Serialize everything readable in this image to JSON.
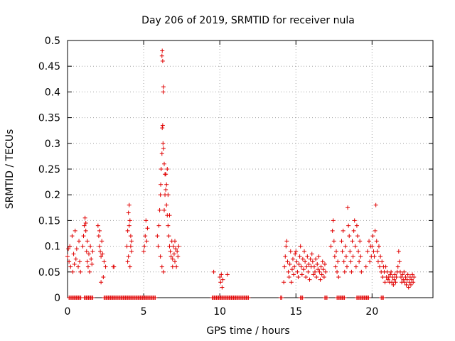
{
  "chart_data": {
    "type": "scatter",
    "title": "Day 206 of 2019, SRMTID for receiver nula",
    "xlabel": "GPS time / hours",
    "ylabel": "SRMTID / TECUs",
    "xlim": [
      0,
      24
    ],
    "ylim": [
      0,
      0.5
    ],
    "xticks": [
      0,
      5,
      10,
      15,
      20
    ],
    "yticks": [
      0,
      0.05,
      0.1,
      0.15,
      0.2,
      0.25,
      0.3,
      0.35,
      0.4,
      0.45,
      0.5
    ],
    "grid": true,
    "marker": "+",
    "color": "#e00000",
    "series": [
      {
        "name": "SRMTID",
        "points": [
          [
            0.0,
            0.08
          ],
          [
            0.05,
            0.095
          ],
          [
            0.1,
            0.07
          ],
          [
            0.15,
            0.1
          ],
          [
            0.2,
            0.06
          ],
          [
            0.3,
            0.12
          ],
          [
            0.35,
            0.05
          ],
          [
            0.4,
            0.085
          ],
          [
            0.45,
            0.065
          ],
          [
            0.5,
            0.13
          ],
          [
            0.55,
            0.075
          ],
          [
            0.6,
            0.095
          ],
          [
            0.7,
            0.06
          ],
          [
            0.75,
            0.11
          ],
          [
            0.8,
            0.07
          ],
          [
            0.85,
            0.05
          ],
          [
            1.0,
            0.1
          ],
          [
            1.05,
            0.12
          ],
          [
            1.1,
            0.14
          ],
          [
            1.15,
            0.155
          ],
          [
            1.2,
            0.13
          ],
          [
            1.25,
            0.09
          ],
          [
            1.3,
            0.07
          ],
          [
            1.35,
            0.06
          ],
          [
            1.4,
            0.085
          ],
          [
            1.45,
            0.05
          ],
          [
            1.5,
            0.1
          ],
          [
            1.55,
            0.075
          ],
          [
            1.6,
            0.065
          ],
          [
            1.65,
            0.09
          ],
          [
            1.3,
            0.11
          ],
          [
            1.2,
            0.145
          ],
          [
            2.0,
            0.14
          ],
          [
            2.05,
            0.12
          ],
          [
            2.1,
            0.1
          ],
          [
            2.15,
            0.09
          ],
          [
            2.2,
            0.08
          ],
          [
            2.25,
            0.11
          ],
          [
            2.3,
            0.085
          ],
          [
            2.35,
            0.04
          ],
          [
            2.4,
            0.07
          ],
          [
            2.1,
            0.13
          ],
          [
            2.5,
            0.06
          ],
          [
            2.2,
            0.03
          ],
          [
            3.0,
            0.06
          ],
          [
            3.05,
            0.06
          ],
          [
            3.9,
            0.1
          ],
          [
            3.95,
            0.13
          ],
          [
            4.0,
            0.165
          ],
          [
            4.05,
            0.18
          ],
          [
            4.1,
            0.15
          ],
          [
            4.15,
            0.12
          ],
          [
            4.2,
            0.09
          ],
          [
            3.95,
            0.07
          ],
          [
            4.0,
            0.08
          ],
          [
            4.1,
            0.06
          ],
          [
            4.05,
            0.14
          ],
          [
            4.15,
            0.1
          ],
          [
            4.2,
            0.11
          ],
          [
            5.0,
            0.09
          ],
          [
            5.05,
            0.1
          ],
          [
            5.1,
            0.12
          ],
          [
            5.15,
            0.15
          ],
          [
            5.2,
            0.11
          ],
          [
            5.25,
            0.135
          ],
          [
            5.9,
            0.12
          ],
          [
            5.95,
            0.1
          ],
          [
            6.0,
            0.14
          ],
          [
            6.05,
            0.17
          ],
          [
            6.1,
            0.2
          ],
          [
            6.12,
            0.22
          ],
          [
            6.15,
            0.25
          ],
          [
            6.2,
            0.28
          ],
          [
            6.22,
            0.33
          ],
          [
            6.25,
            0.335
          ],
          [
            6.27,
            0.3
          ],
          [
            6.3,
            0.41
          ],
          [
            6.28,
            0.4
          ],
          [
            6.2,
            0.47
          ],
          [
            6.22,
            0.48
          ],
          [
            6.25,
            0.46
          ],
          [
            6.3,
            0.29
          ],
          [
            6.35,
            0.26
          ],
          [
            6.4,
            0.24
          ],
          [
            6.45,
            0.21
          ],
          [
            6.5,
            0.18
          ],
          [
            6.55,
            0.16
          ],
          [
            6.6,
            0.14
          ],
          [
            6.65,
            0.12
          ],
          [
            6.7,
            0.1
          ],
          [
            6.75,
            0.09
          ],
          [
            6.8,
            0.08
          ],
          [
            6.85,
            0.11
          ],
          [
            6.9,
            0.075
          ],
          [
            6.95,
            0.1
          ],
          [
            7.0,
            0.085
          ],
          [
            7.05,
            0.07
          ],
          [
            7.1,
            0.095
          ],
          [
            7.15,
            0.06
          ],
          [
            7.2,
            0.09
          ],
          [
            7.25,
            0.08
          ],
          [
            7.3,
            0.1
          ],
          [
            6.4,
            0.2
          ],
          [
            6.45,
            0.24
          ],
          [
            6.5,
            0.22
          ],
          [
            6.35,
            0.17
          ],
          [
            6.2,
            0.06
          ],
          [
            6.1,
            0.08
          ],
          [
            6.3,
            0.05
          ],
          [
            6.6,
            0.2
          ],
          [
            6.7,
            0.16
          ],
          [
            6.55,
            0.25
          ],
          [
            7.05,
            0.11
          ],
          [
            6.9,
            0.06
          ],
          [
            9.6,
            0.05
          ],
          [
            10.0,
            0.04
          ],
          [
            10.05,
            0.03
          ],
          [
            10.1,
            0.045
          ],
          [
            10.15,
            0.02
          ],
          [
            10.2,
            0.035
          ],
          [
            10.5,
            0.045
          ],
          [
            14.2,
            0.03
          ],
          [
            14.25,
            0.06
          ],
          [
            14.3,
            0.08
          ],
          [
            14.35,
            0.1
          ],
          [
            14.4,
            0.11
          ],
          [
            14.45,
            0.07
          ],
          [
            14.5,
            0.05
          ],
          [
            14.55,
            0.04
          ],
          [
            14.6,
            0.065
          ],
          [
            14.65,
            0.09
          ],
          [
            14.7,
            0.03
          ],
          [
            14.75,
            0.055
          ],
          [
            14.8,
            0.075
          ],
          [
            14.85,
            0.045
          ],
          [
            14.9,
            0.06
          ],
          [
            14.95,
            0.085
          ],
          [
            15.0,
            0.09
          ],
          [
            15.05,
            0.07
          ],
          [
            15.1,
            0.05
          ],
          [
            15.15,
            0.04
          ],
          [
            15.2,
            0.065
          ],
          [
            15.25,
            0.08
          ],
          [
            15.3,
            0.1
          ],
          [
            15.35,
            0.06
          ],
          [
            15.4,
            0.045
          ],
          [
            15.45,
            0.075
          ],
          [
            15.5,
            0.055
          ],
          [
            15.55,
            0.09
          ],
          [
            15.6,
            0.07
          ],
          [
            15.65,
            0.04
          ],
          [
            15.7,
            0.06
          ],
          [
            15.75,
            0.08
          ],
          [
            15.8,
            0.05
          ],
          [
            15.85,
            0.065
          ],
          [
            15.9,
            0.035
          ],
          [
            15.95,
            0.075
          ],
          [
            16.0,
            0.06
          ],
          [
            16.05,
            0.085
          ],
          [
            16.1,
            0.07
          ],
          [
            16.15,
            0.045
          ],
          [
            16.2,
            0.06
          ],
          [
            16.25,
            0.05
          ],
          [
            16.3,
            0.075
          ],
          [
            16.35,
            0.04
          ],
          [
            16.4,
            0.065
          ],
          [
            16.45,
            0.055
          ],
          [
            16.5,
            0.08
          ],
          [
            16.55,
            0.05
          ],
          [
            16.6,
            0.035
          ],
          [
            16.65,
            0.06
          ],
          [
            16.7,
            0.045
          ],
          [
            16.75,
            0.07
          ],
          [
            16.8,
            0.055
          ],
          [
            16.85,
            0.04
          ],
          [
            16.9,
            0.065
          ],
          [
            16.95,
            0.05
          ],
          [
            17.3,
            0.1
          ],
          [
            17.4,
            0.13
          ],
          [
            17.45,
            0.15
          ],
          [
            17.5,
            0.11
          ],
          [
            17.55,
            0.08
          ],
          [
            17.6,
            0.06
          ],
          [
            17.65,
            0.09
          ],
          [
            17.7,
            0.05
          ],
          [
            17.75,
            0.07
          ],
          [
            17.8,
            0.04
          ],
          [
            18.0,
            0.11
          ],
          [
            18.05,
            0.09
          ],
          [
            18.1,
            0.13
          ],
          [
            18.15,
            0.07
          ],
          [
            18.2,
            0.05
          ],
          [
            18.25,
            0.1
          ],
          [
            18.3,
            0.08
          ],
          [
            18.35,
            0.06
          ],
          [
            18.4,
            0.175
          ],
          [
            18.45,
            0.14
          ],
          [
            18.5,
            0.12
          ],
          [
            18.55,
            0.09
          ],
          [
            18.6,
            0.07
          ],
          [
            18.65,
            0.05
          ],
          [
            18.7,
            0.11
          ],
          [
            18.75,
            0.08
          ],
          [
            18.8,
            0.13
          ],
          [
            18.85,
            0.15
          ],
          [
            18.9,
            0.1
          ],
          [
            18.95,
            0.06
          ],
          [
            19.0,
            0.14
          ],
          [
            19.05,
            0.12
          ],
          [
            19.1,
            0.09
          ],
          [
            19.15,
            0.07
          ],
          [
            19.2,
            0.11
          ],
          [
            19.25,
            0.08
          ],
          [
            19.3,
            0.05
          ],
          [
            19.6,
            0.06
          ],
          [
            19.7,
            0.09
          ],
          [
            19.8,
            0.11
          ],
          [
            19.85,
            0.07
          ],
          [
            19.9,
            0.1
          ],
          [
            19.95,
            0.08
          ],
          [
            20.0,
            0.1
          ],
          [
            20.05,
            0.12
          ],
          [
            20.1,
            0.09
          ],
          [
            20.15,
            0.08
          ],
          [
            20.2,
            0.13
          ],
          [
            20.25,
            0.18
          ],
          [
            20.3,
            0.11
          ],
          [
            20.35,
            0.09
          ],
          [
            20.4,
            0.07
          ],
          [
            20.45,
            0.1
          ],
          [
            20.5,
            0.06
          ],
          [
            20.55,
            0.08
          ],
          [
            20.6,
            0.05
          ],
          [
            20.65,
            0.07
          ],
          [
            20.7,
            0.04
          ],
          [
            20.75,
            0.06
          ],
          [
            20.8,
            0.05
          ],
          [
            20.85,
            0.03
          ],
          [
            20.9,
            0.06
          ],
          [
            20.95,
            0.04
          ],
          [
            21.0,
            0.05
          ],
          [
            21.05,
            0.035
          ],
          [
            21.1,
            0.04
          ],
          [
            21.15,
            0.03
          ],
          [
            21.2,
            0.045
          ],
          [
            21.25,
            0.05
          ],
          [
            21.3,
            0.03
          ],
          [
            21.35,
            0.04
          ],
          [
            21.4,
            0.025
          ],
          [
            21.45,
            0.035
          ],
          [
            21.5,
            0.045
          ],
          [
            21.55,
            0.03
          ],
          [
            21.6,
            0.04
          ],
          [
            21.65,
            0.05
          ],
          [
            21.7,
            0.06
          ],
          [
            21.75,
            0.09
          ],
          [
            21.8,
            0.07
          ],
          [
            21.85,
            0.05
          ],
          [
            21.9,
            0.04
          ],
          [
            21.95,
            0.03
          ],
          [
            22.0,
            0.045
          ],
          [
            22.05,
            0.035
          ],
          [
            22.1,
            0.05
          ],
          [
            22.15,
            0.03
          ],
          [
            22.2,
            0.04
          ],
          [
            22.25,
            0.025
          ],
          [
            22.3,
            0.035
          ],
          [
            22.35,
            0.045
          ],
          [
            22.4,
            0.02
          ],
          [
            22.45,
            0.03
          ],
          [
            22.5,
            0.04
          ],
          [
            22.55,
            0.025
          ],
          [
            22.6,
            0.035
          ],
          [
            22.65,
            0.045
          ],
          [
            22.7,
            0.03
          ],
          [
            22.75,
            0.04
          ]
        ],
        "zero_runs": [
          [
            0.1,
            0.9
          ],
          [
            1.1,
            1.7
          ],
          [
            2.4,
            5.8
          ],
          [
            9.5,
            11.9
          ],
          [
            14.0,
            14.1
          ],
          [
            15.3,
            15.5
          ],
          [
            16.9,
            17.1
          ],
          [
            17.7,
            18.2
          ],
          [
            19.0,
            19.8
          ],
          [
            20.6,
            20.8
          ]
        ]
      }
    ]
  }
}
